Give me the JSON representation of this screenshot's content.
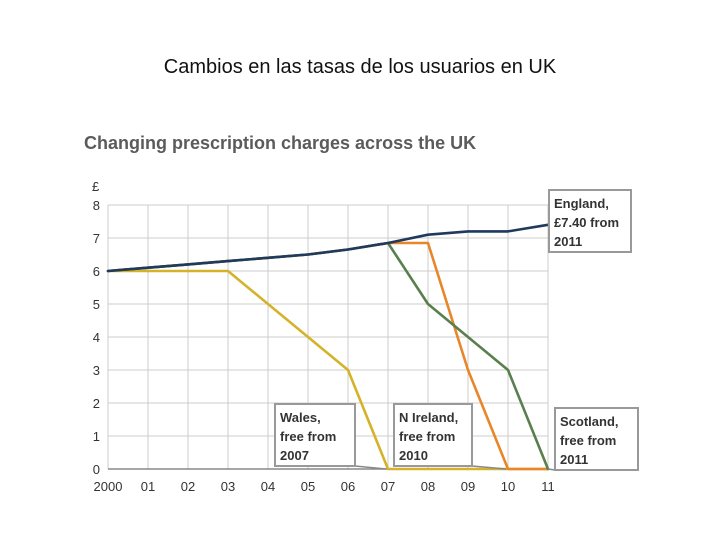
{
  "slide": {
    "title": "Cambios en las tasas de los usuarios en UK"
  },
  "colors": {
    "england": "#1f3a5c",
    "wales": "#d4b32a",
    "n_ireland": "#e8862a",
    "scotland": "#5a7f4e",
    "grid": "#cccccc",
    "axis": "#888888"
  },
  "chart_data": {
    "type": "line",
    "title": "Changing prescription charges across the UK",
    "ylabel": "£",
    "xlabel": "",
    "x": [
      "2000",
      "01",
      "02",
      "03",
      "04",
      "05",
      "06",
      "07",
      "08",
      "09",
      "10",
      "11"
    ],
    "ylim": [
      0,
      8
    ],
    "yticks": [
      0,
      1,
      2,
      3,
      4,
      5,
      6,
      7,
      8
    ],
    "grid": true,
    "series": [
      {
        "key": "wales",
        "values": [
          6.0,
          6.0,
          6.0,
          6.0,
          5.0,
          4.0,
          3.0,
          0,
          0,
          0,
          0,
          0
        ]
      },
      {
        "key": "n_ireland",
        "values": [
          6.0,
          6.1,
          6.2,
          6.3,
          6.4,
          6.5,
          6.65,
          6.85,
          6.85,
          3.0,
          0,
          0
        ]
      },
      {
        "key": "scotland",
        "values": [
          6.0,
          6.1,
          6.2,
          6.3,
          6.4,
          6.5,
          6.65,
          6.85,
          5.0,
          4.0,
          3.0,
          0
        ]
      },
      {
        "key": "england",
        "values": [
          6.0,
          6.1,
          6.2,
          6.3,
          6.4,
          6.5,
          6.65,
          6.85,
          7.1,
          7.2,
          7.2,
          7.4
        ]
      }
    ],
    "annotations": [
      {
        "key": "england",
        "lines": [
          "England,",
          "£7.40 from",
          "2011"
        ]
      },
      {
        "key": "wales",
        "lines": [
          "Wales,",
          "free from",
          "2007"
        ]
      },
      {
        "key": "n_ireland",
        "lines": [
          "N Ireland,",
          "free from",
          "2010"
        ]
      },
      {
        "key": "scotland",
        "lines": [
          "Scotland,",
          "free from",
          "2011"
        ]
      }
    ]
  }
}
